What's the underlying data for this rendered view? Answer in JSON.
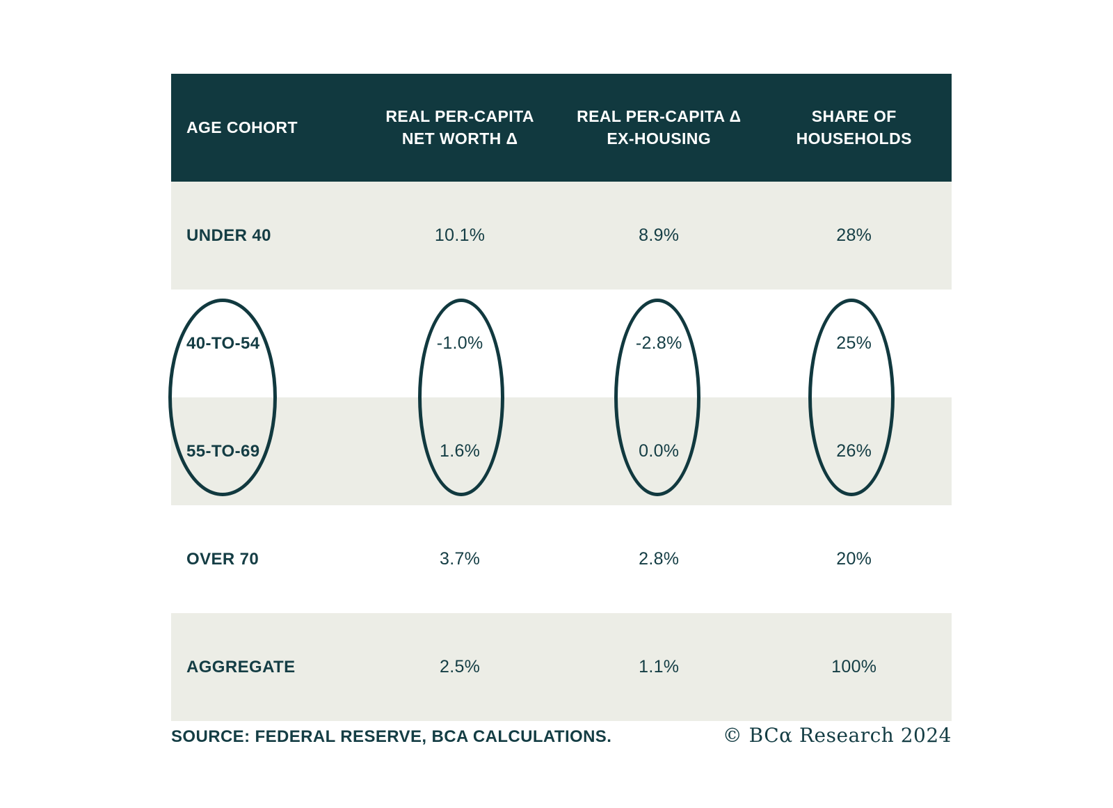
{
  "colors": {
    "header_bg": "#11393f",
    "row_band_bg": "#ecede6",
    "text": "#143d44",
    "ellipse_stroke": "#11393f"
  },
  "chart_data": {
    "type": "table",
    "title": "",
    "columns": [
      "AGE COHORT",
      "REAL PER-CAPITA NET WORTH Δ",
      "REAL PER-CAPITA Δ EX-HOUSING",
      "SHARE OF HOUSEHOLDS"
    ],
    "rows": [
      [
        "UNDER 40",
        "10.1%",
        "8.9%",
        "28%"
      ],
      [
        "40-TO-54",
        "-1.0%",
        "-2.8%",
        "25%"
      ],
      [
        "55-TO-69",
        "1.6%",
        "0.0%",
        "26%"
      ],
      [
        "OVER 70",
        "3.7%",
        "2.8%",
        "20%"
      ],
      [
        "AGGREGATE",
        "2.5%",
        "1.1%",
        "100%"
      ]
    ],
    "highlighted_rows": [
      "40-TO-54",
      "55-TO-69"
    ],
    "layout_hints": "alternating beige/white row bands; four vertical ellipses circle the 40-TO-54 and 55-TO-69 values in each column"
  },
  "header": {
    "col_age": "AGE COHORT",
    "col_networth": "REAL PER-CAPITA\nNET WORTH Δ",
    "col_exhousing": "REAL PER-CAPITA Δ\nEX-HOUSING",
    "col_share": "SHARE OF\nHOUSEHOLDS"
  },
  "rows": [
    {
      "cohort": "UNDER 40",
      "net_worth": "10.1%",
      "ex_housing": "8.9%",
      "share": "28%"
    },
    {
      "cohort": "40-TO-54",
      "net_worth": "-1.0%",
      "ex_housing": "-2.8%",
      "share": "25%"
    },
    {
      "cohort": "55-TO-69",
      "net_worth": "1.6%",
      "ex_housing": "0.0%",
      "share": "26%"
    },
    {
      "cohort": "OVER 70",
      "net_worth": "3.7%",
      "ex_housing": "2.8%",
      "share": "20%"
    },
    {
      "cohort": "AGGREGATE",
      "net_worth": "2.5%",
      "ex_housing": "1.1%",
      "share": "100%"
    }
  ],
  "footer": {
    "source": "SOURCE: FEDERAL RESERVE, BCA CALCULATIONS.",
    "credit": "© BCα Research 2024"
  }
}
